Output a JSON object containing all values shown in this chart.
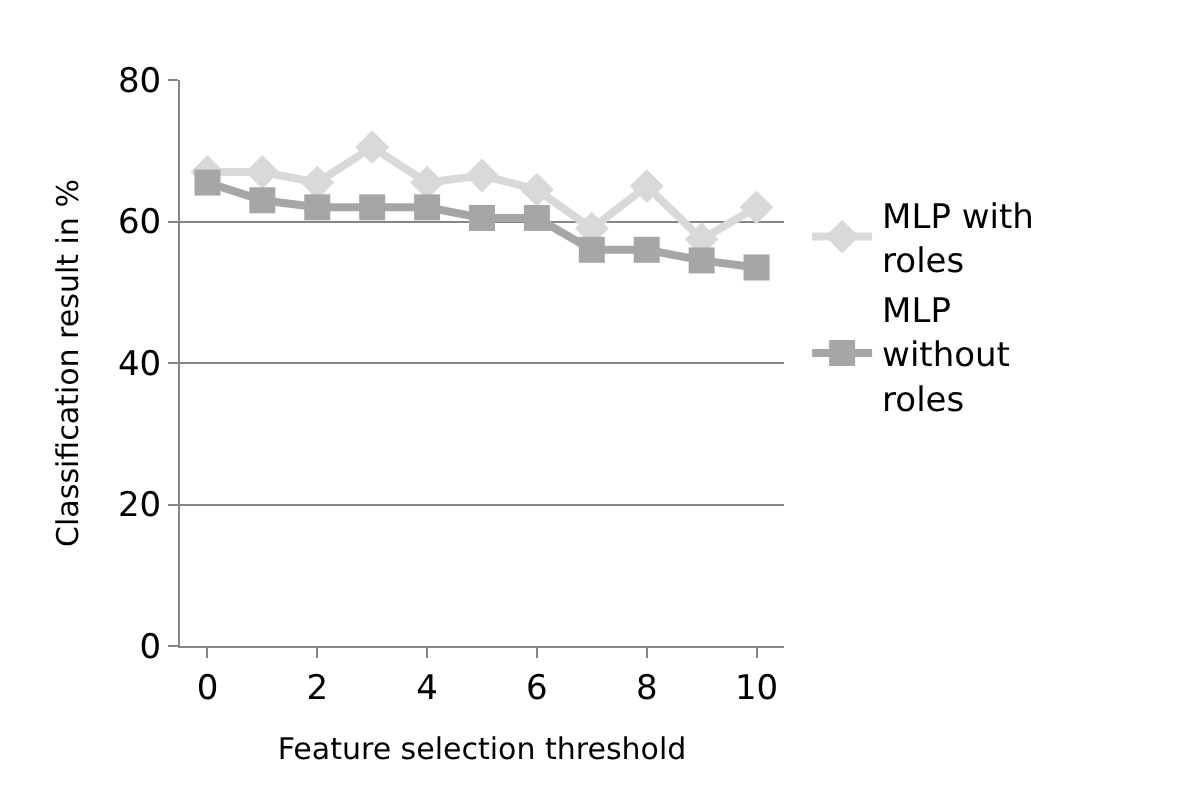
{
  "chart_data": {
    "type": "line",
    "xlabel": "Feature selection threshold",
    "ylabel": "Classification result in %",
    "x": [
      0,
      1,
      2,
      3,
      4,
      5,
      6,
      7,
      8,
      9,
      10
    ],
    "series": [
      {
        "name": "MLP with roles",
        "color": "#d9d9d9",
        "marker": "diamond",
        "values": [
          67,
          67,
          65.5,
          70.5,
          65.5,
          66.5,
          64.5,
          59,
          65,
          57.5,
          62
        ]
      },
      {
        "name": "MLP without roles",
        "color": "#a6a6a6",
        "marker": "square",
        "values": [
          65.5,
          63,
          62,
          62,
          62,
          60.5,
          60.5,
          56,
          56,
          54.5,
          53.5
        ]
      }
    ],
    "xlim": [
      -0.5,
      10.5
    ],
    "xticks": [
      0,
      2,
      4,
      6,
      8,
      10
    ],
    "ylim": [
      0,
      80
    ],
    "yticks": [
      0,
      20,
      40,
      60,
      80
    ],
    "grid": "y",
    "legend": "right"
  }
}
